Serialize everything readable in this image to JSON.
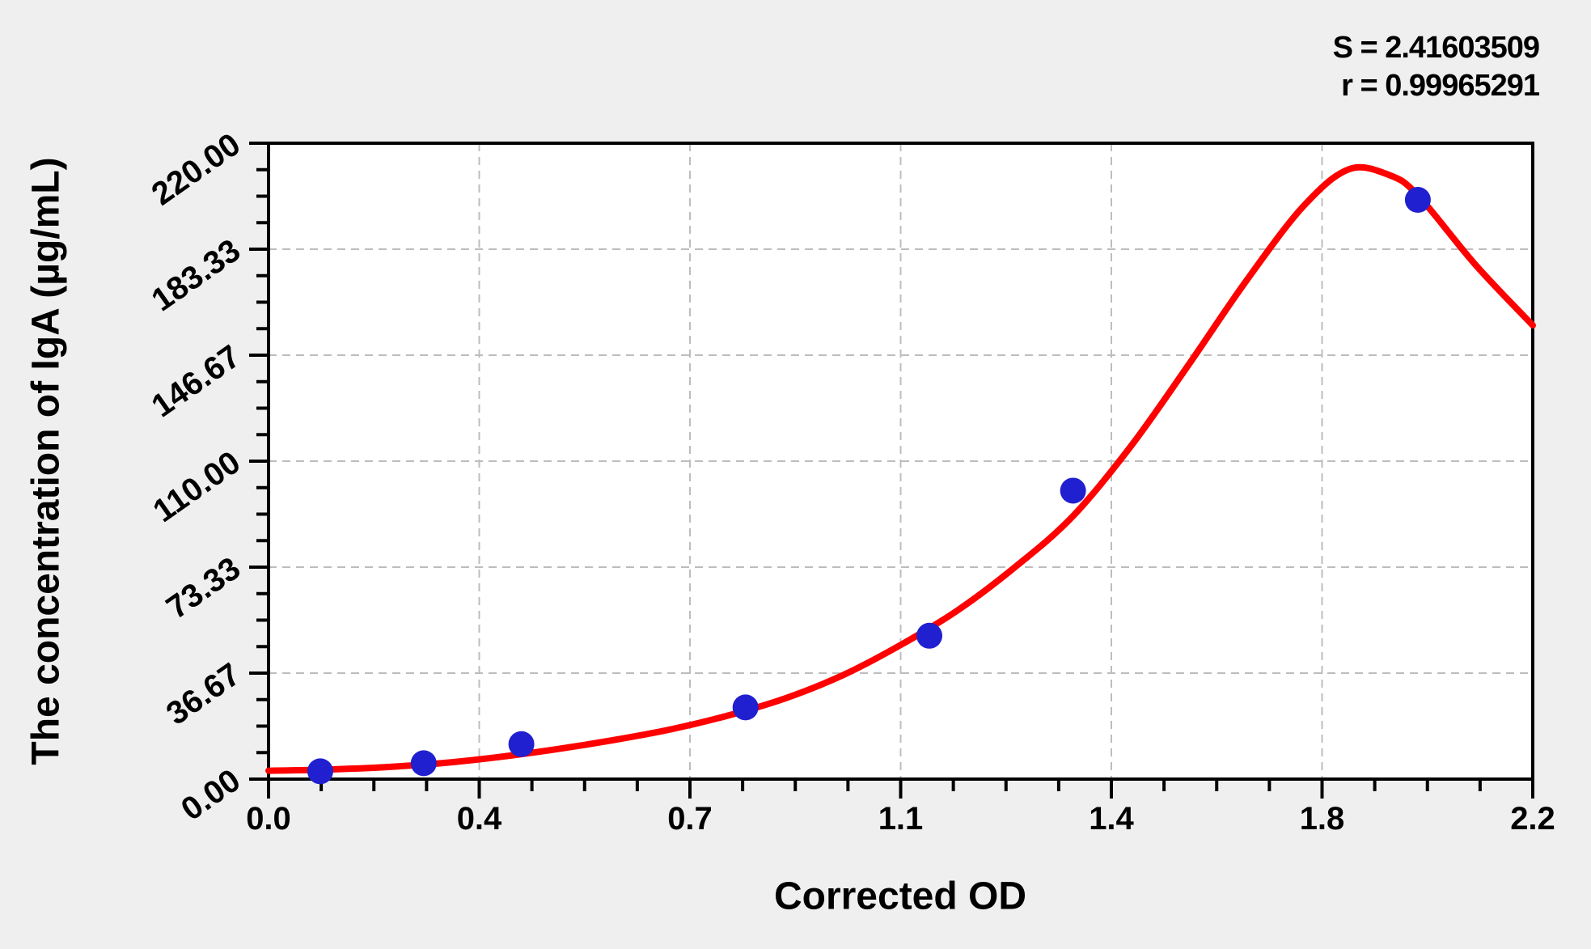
{
  "chart_data": {
    "type": "scatter",
    "title": "",
    "xlabel": "Corrected OD",
    "ylabel": "The concentration of IgA (µg/mL)",
    "xlim": [
      0,
      2.2
    ],
    "ylim": [
      0,
      220
    ],
    "x_tick_labels": [
      "0.0",
      "0.4",
      "0.7",
      "1.1",
      "1.4",
      "1.8",
      "2.2"
    ],
    "y_tick_labels": [
      "0.00",
      "36.67",
      "73.33",
      "110.00",
      "146.67",
      "183.33",
      "220.00"
    ],
    "minor_ticks_per_major": 4,
    "grid": "dashed lines at major ticks",
    "legend_position": "none",
    "stats": {
      "s": "S = 2.41603509",
      "r": "r = 0.99965291"
    },
    "series": [
      {
        "name": "standard-points",
        "type": "scatter",
        "marker": "circle",
        "points": [
          {
            "x": 0.09,
            "y": 2.7
          },
          {
            "x": 0.27,
            "y": 5.5
          },
          {
            "x": 0.44,
            "y": 12.1
          },
          {
            "x": 0.83,
            "y": 24.8
          },
          {
            "x": 1.15,
            "y": 49.6
          },
          {
            "x": 1.4,
            "y": 99.8
          },
          {
            "x": 2.0,
            "y": 200.4
          }
        ]
      },
      {
        "name": "fitted-curve",
        "type": "line",
        "points": [
          [
            0.0,
            2.9
          ],
          [
            0.1,
            3.3
          ],
          [
            0.2,
            4.1
          ],
          [
            0.3,
            5.5
          ],
          [
            0.4,
            7.6
          ],
          [
            0.5,
            10.3
          ],
          [
            0.6,
            13.5
          ],
          [
            0.7,
            17.2
          ],
          [
            0.8,
            22.0
          ],
          [
            0.9,
            28.0
          ],
          [
            1.0,
            36.0
          ],
          [
            1.1,
            46.4
          ],
          [
            1.2,
            58.5
          ],
          [
            1.3,
            73.5
          ],
          [
            1.4,
            91.0
          ],
          [
            1.5,
            115.0
          ],
          [
            1.6,
            143.0
          ],
          [
            1.7,
            172.0
          ],
          [
            1.8,
            198.0
          ],
          [
            1.88,
            211.0
          ],
          [
            1.95,
            209.0
          ],
          [
            2.0,
            202.0
          ],
          [
            2.1,
            178.0
          ],
          [
            2.2,
            157.0
          ]
        ]
      }
    ],
    "colors": {
      "curve": "#ff0000",
      "marker": "#2020d0",
      "frame": "#000000",
      "grid": "#bdbdbd",
      "plot_bg": "#ffffff",
      "page_bg": "#efefef",
      "text": "#000000"
    }
  }
}
